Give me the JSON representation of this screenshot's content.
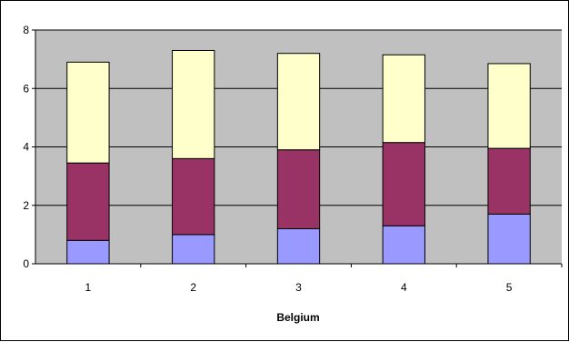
{
  "chart_data": {
    "type": "bar",
    "stacked": true,
    "categories": [
      "1",
      "2",
      "3",
      "4",
      "5"
    ],
    "series": [
      {
        "values": [
          0.8,
          1.0,
          1.2,
          1.3,
          1.7
        ]
      },
      {
        "values": [
          2.65,
          2.6,
          2.7,
          2.85,
          2.25
        ]
      },
      {
        "values": [
          3.45,
          3.7,
          3.3,
          3.0,
          2.9
        ]
      }
    ],
    "title": "",
    "xlabel": "Belgium",
    "ylabel": "",
    "ylim": [
      0,
      8
    ],
    "yticks": [
      "0",
      "2",
      "4",
      "6",
      "8"
    ],
    "grid": true,
    "legend": "none",
    "colors": {
      "series": [
        "#9999ff",
        "#993366",
        "#ffffcc"
      ],
      "plot_background": "#c0c0c0",
      "gridline": "#000000",
      "bar_outline": "#000000"
    }
  }
}
